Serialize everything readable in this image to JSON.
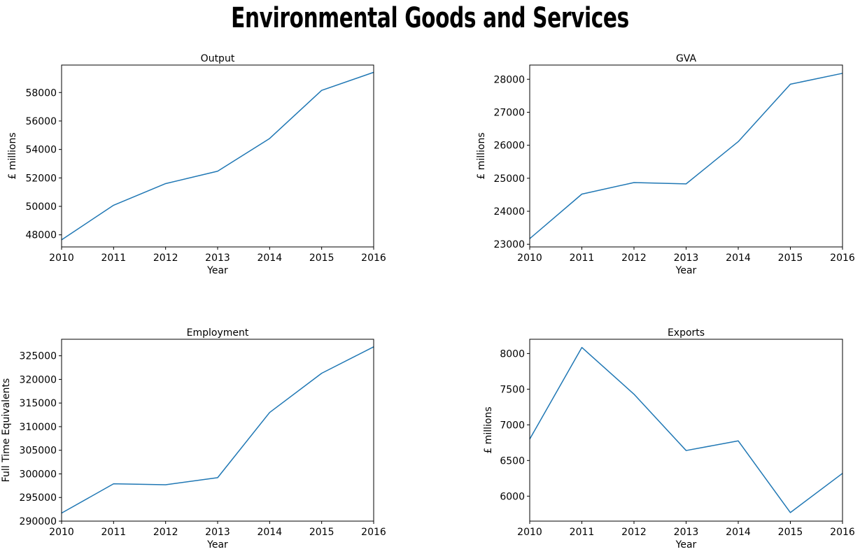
{
  "page": {
    "title": "Environmental Goods and Services"
  },
  "chart_data": [
    {
      "type": "line",
      "title": "Output",
      "xlabel": "Year",
      "ylabel": "£ millions",
      "x": [
        2010,
        2011,
        2012,
        2013,
        2014,
        2015,
        2016
      ],
      "series": [
        {
          "values": [
            47650,
            50080,
            51600,
            52470,
            54770,
            58150,
            59420
          ]
        }
      ],
      "xlim": [
        2010,
        2016
      ],
      "ylim": [
        47150,
        59930
      ],
      "x_ticks": [
        "2010",
        "2011",
        "2012",
        "2013",
        "2014",
        "2015",
        "2016"
      ],
      "y_ticks": [
        "48000",
        "50000",
        "52000",
        "54000",
        "56000",
        "58000"
      ],
      "line_color": "#1f77b4",
      "grid": false
    },
    {
      "type": "line",
      "title": "GVA",
      "xlabel": "Year",
      "ylabel": "£ millions",
      "x": [
        2010,
        2011,
        2012,
        2013,
        2014,
        2015,
        2016
      ],
      "series": [
        {
          "values": [
            23170,
            24520,
            24870,
            24830,
            26110,
            27850,
            28180
          ]
        }
      ],
      "xlim": [
        2010,
        2016
      ],
      "ylim": [
        22920,
        28430
      ],
      "x_ticks": [
        "2010",
        "2011",
        "2012",
        "2013",
        "2014",
        "2015",
        "2016"
      ],
      "y_ticks": [
        "23000",
        "24000",
        "25000",
        "26000",
        "27000",
        "28000"
      ],
      "line_color": "#1f77b4",
      "grid": false
    },
    {
      "type": "line",
      "title": "Employment",
      "xlabel": "Year",
      "ylabel": "Full Time Equivalents",
      "x": [
        2010,
        2011,
        2012,
        2013,
        2014,
        2015,
        2016
      ],
      "series": [
        {
          "values": [
            291700,
            297900,
            297700,
            299200,
            313000,
            321300,
            326900
          ]
        }
      ],
      "xlim": [
        2010,
        2016
      ],
      "ylim": [
        290000,
        328500
      ],
      "x_ticks": [
        "2010",
        "2011",
        "2012",
        "2013",
        "2014",
        "2015",
        "2016"
      ],
      "y_ticks": [
        "290000",
        "295000",
        "300000",
        "305000",
        "310000",
        "315000",
        "320000",
        "325000"
      ],
      "line_color": "#1f77b4",
      "grid": false
    },
    {
      "type": "line",
      "title": "Exports",
      "xlabel": "Year",
      "ylabel": "£ millions",
      "x": [
        2010,
        2011,
        2012,
        2013,
        2014,
        2015,
        2016
      ],
      "series": [
        {
          "values": [
            6800,
            8085,
            7430,
            6640,
            6775,
            5770,
            6320
          ]
        }
      ],
      "xlim": [
        2010,
        2016
      ],
      "ylim": [
        5650,
        8200
      ],
      "x_ticks": [
        "2010",
        "2011",
        "2012",
        "2013",
        "2014",
        "2015",
        "2016"
      ],
      "y_ticks": [
        "6000",
        "6500",
        "7000",
        "7500",
        "8000"
      ],
      "line_color": "#1f77b4",
      "grid": false
    }
  ]
}
